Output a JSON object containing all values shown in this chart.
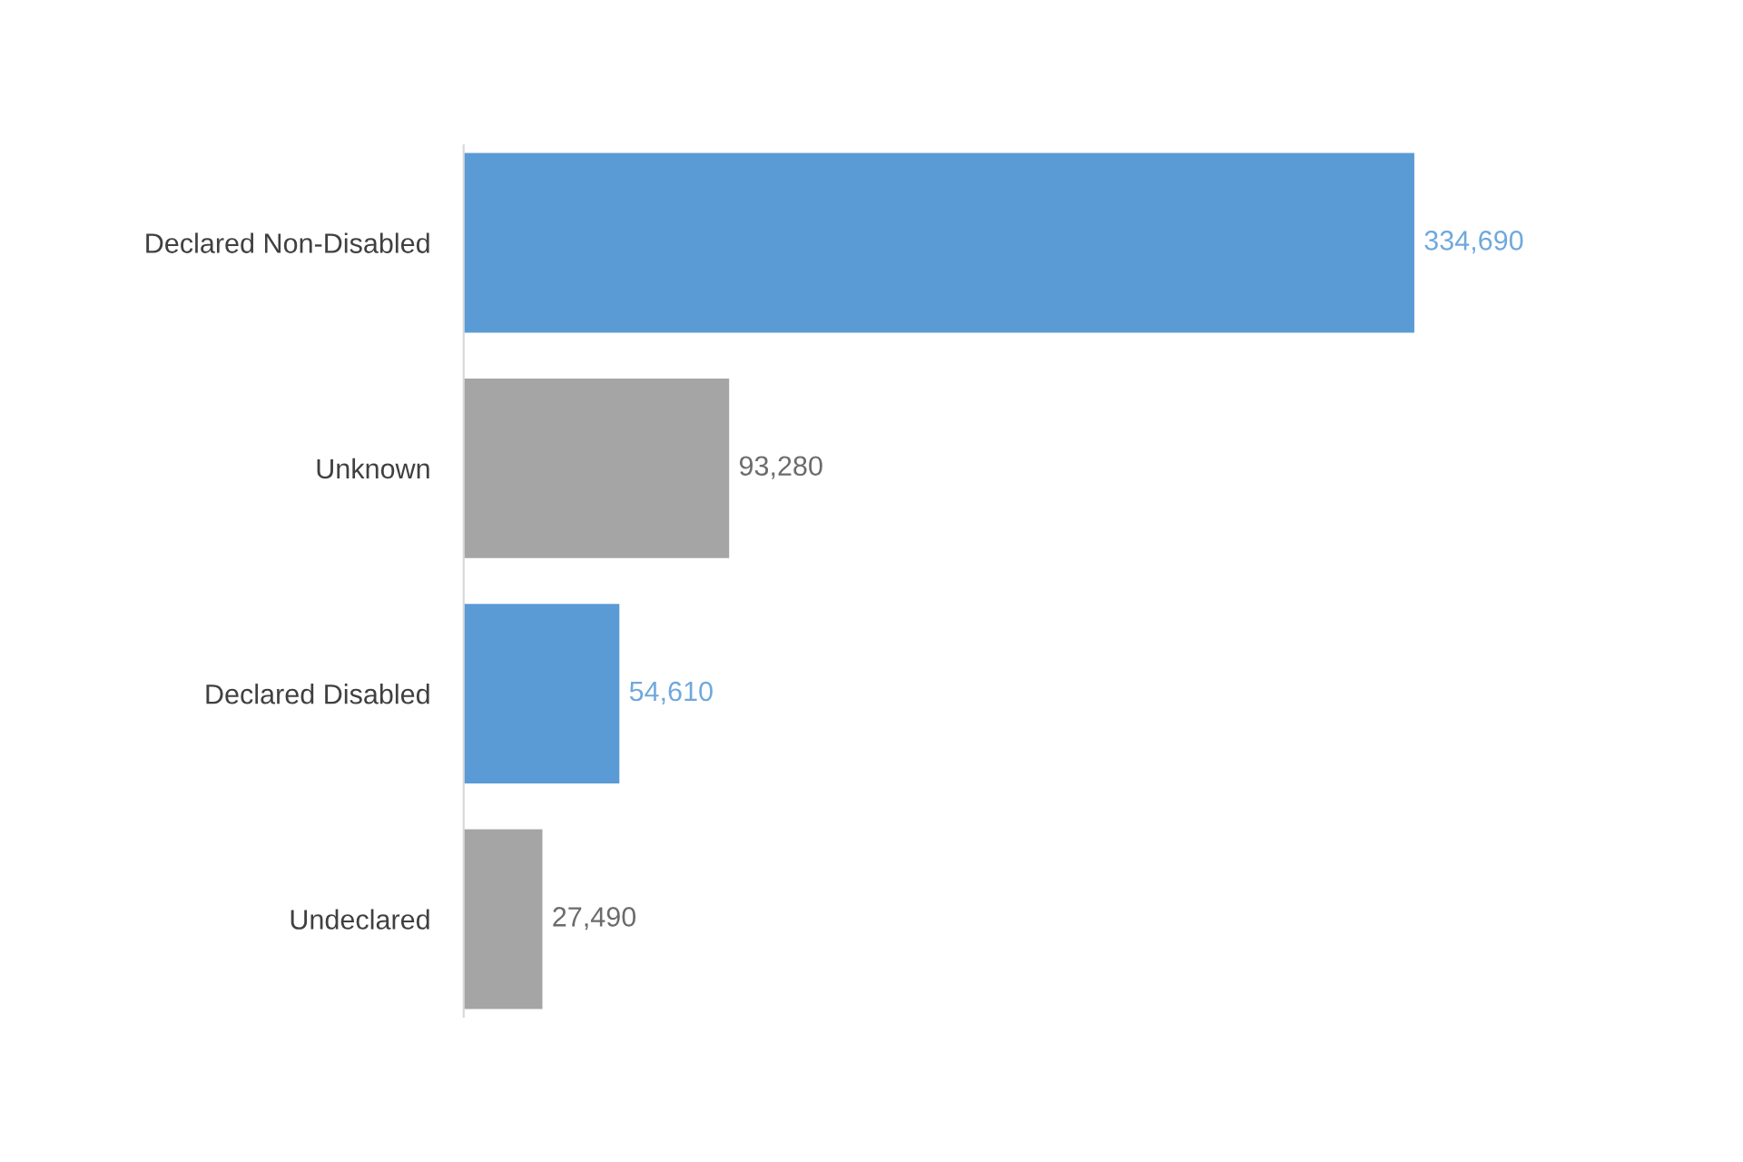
{
  "chart_data": {
    "type": "bar",
    "orientation": "horizontal",
    "categories": [
      "Declared Non-Disabled",
      "Unknown",
      "Declared Disabled",
      "Undeclared"
    ],
    "values": [
      334690,
      93280,
      54610,
      27490
    ],
    "colors": [
      "#5b9bd5",
      "#a5a5a5",
      "#5b9bd5",
      "#a5a5a5"
    ],
    "value_labels": [
      "334,690",
      "93,280",
      "54,610",
      "27,490"
    ],
    "grid": false,
    "legend": false,
    "tick_labels": "y"
  }
}
